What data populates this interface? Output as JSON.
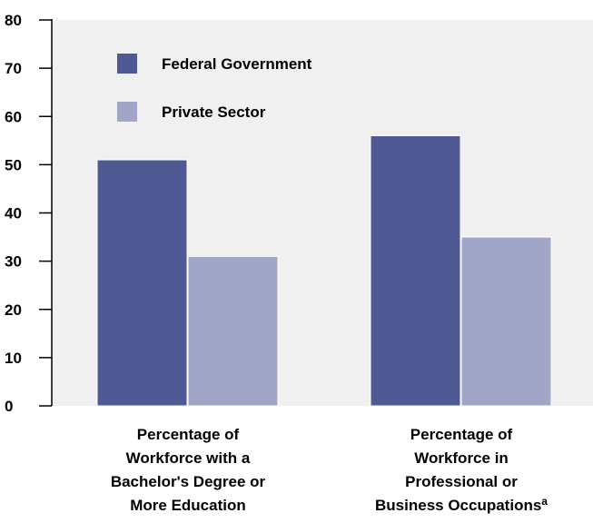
{
  "chart_data": {
    "type": "bar",
    "categories": [
      [
        "Percentage of",
        "Workforce with a",
        "Bachelor's Degree or",
        "More Education"
      ],
      [
        "Percentage of",
        "Workforce in",
        "Professional or",
        "Business Occupations"
      ]
    ],
    "category_footnote": [
      "",
      "a"
    ],
    "series": [
      {
        "name": "Federal Government",
        "color": "#4f5994",
        "values": [
          51,
          56
        ]
      },
      {
        "name": "Private Sector",
        "color": "#a1a6c8",
        "values": [
          31,
          35
        ]
      }
    ],
    "ylim": [
      0,
      80
    ],
    "yticks": [
      0,
      10,
      20,
      30,
      40,
      50,
      60,
      70,
      80
    ],
    "plot_background": "#f0f0f0",
    "legend_position": "top-left",
    "grid": false
  }
}
